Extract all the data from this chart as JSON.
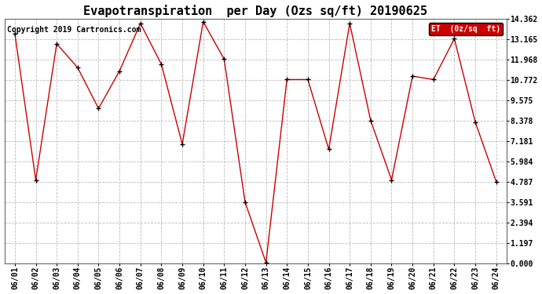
{
  "title": "Evapotranspiration  per Day (Ozs sq/ft) 20190625",
  "copyright": "Copyright 2019 Cartronics.com",
  "legend_label": "ET  (0z/sq  ft)",
  "legend_bg": "#cc0000",
  "legend_text_color": "#ffffff",
  "background_color": "#ffffff",
  "plot_bg_color": "#ffffff",
  "line_color": "#cc0000",
  "marker_color": "#000000",
  "grid_color": "#bbbbbb",
  "dates": [
    "06/01",
    "06/02",
    "06/03",
    "06/04",
    "06/05",
    "06/06",
    "06/07",
    "06/08",
    "06/09",
    "06/10",
    "06/11",
    "06/12",
    "06/13",
    "06/14",
    "06/15",
    "06/16",
    "06/17",
    "06/18",
    "06/19",
    "06/20",
    "06/21",
    "06/22",
    "06/23",
    "06/24"
  ],
  "values": [
    13.5,
    4.9,
    12.9,
    11.5,
    9.1,
    11.3,
    14.1,
    11.7,
    7.0,
    14.2,
    12.0,
    3.6,
    0.05,
    10.8,
    10.8,
    6.7,
    14.1,
    8.4,
    4.9,
    11.0,
    10.8,
    13.2,
    8.3,
    4.8
  ],
  "yticks": [
    0.0,
    1.197,
    2.394,
    3.591,
    4.787,
    5.984,
    7.181,
    8.378,
    9.575,
    10.772,
    11.968,
    13.165,
    14.362
  ],
  "ylim": [
    0.0,
    14.362
  ],
  "title_fontsize": 11,
  "tick_fontsize": 7,
  "copyright_fontsize": 7,
  "legend_fontsize": 7
}
